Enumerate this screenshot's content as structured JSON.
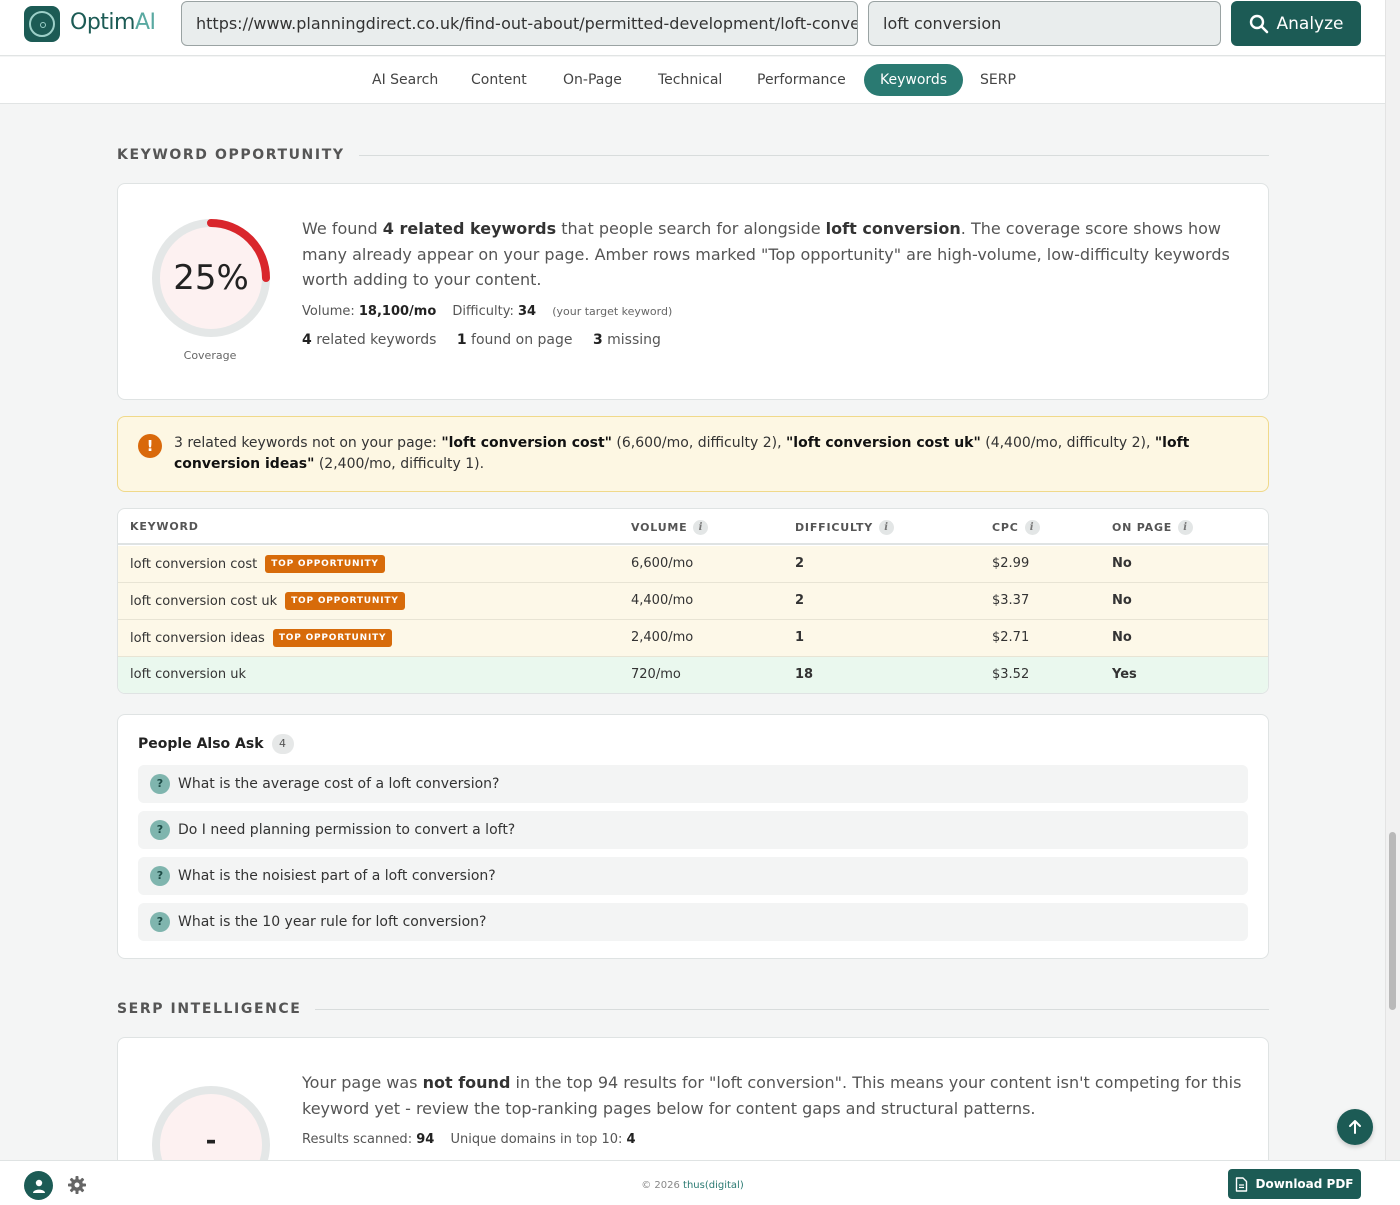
{
  "brand": {
    "name": "Optim",
    "name_suffix": "AI"
  },
  "search": {
    "url_value": "https://www.planningdirect.co.uk/find-out-about/permitted-development/loft-conversion",
    "keyword_value": "loft conversion",
    "analyze_label": "Analyze"
  },
  "tabs": [
    {
      "label": "AI Search"
    },
    {
      "label": "Content"
    },
    {
      "label": "On-Page"
    },
    {
      "label": "Technical"
    },
    {
      "label": "Performance"
    },
    {
      "label": "Keywords",
      "active": true
    },
    {
      "label": "SERP"
    }
  ],
  "keyword_opportunity": {
    "section_title": "KEYWORD OPPORTUNITY",
    "coverage_value": "25%",
    "coverage_fraction": 0.25,
    "coverage_label": "Coverage",
    "desc_1": "We found ",
    "desc_related": "4 related keywords",
    "desc_2": " that people search for alongside ",
    "desc_keyword": "loft conversion",
    "desc_3": ". The coverage score shows how many already appear on your page. Amber rows marked \"Top opportunity\" are high-volume, low-difficulty keywords worth adding to your content.",
    "volume_label": "Volume:",
    "volume_value": "18,100/mo",
    "difficulty_label": "Difficulty:",
    "difficulty_value": "34",
    "target_note": "(your target keyword)",
    "related_count": "4",
    "related_label": "related keywords",
    "found_count": "1",
    "found_label": "found on page",
    "missing_count": "3",
    "missing_label": "missing"
  },
  "alert": {
    "icon": "!",
    "intro": "3 related keywords not on your page: ",
    "k1": "\"loft conversion cost\"",
    "k1_info": " (6,600/mo, difficulty 2), ",
    "k2": "\"loft conversion cost uk\"",
    "k2_info": " (4,400/mo, difficulty 2), ",
    "k3": "\"loft conversion ideas\"",
    "k3_info": " (2,400/mo, difficulty 1)."
  },
  "table": {
    "headers": {
      "keyword": "KEYWORD",
      "volume": "VOLUME",
      "difficulty": "DIFFICULTY",
      "cpc": "CPC",
      "on_page": "ON PAGE",
      "info": "i"
    },
    "badge_label": "TOP OPPORTUNITY",
    "rows": [
      {
        "keyword": "loft conversion cost",
        "volume": "6,600/mo",
        "difficulty": "2",
        "cpc": "$2.99",
        "on_page": "No"
      },
      {
        "keyword": "loft conversion cost uk",
        "volume": "4,400/mo",
        "difficulty": "2",
        "cpc": "$3.37",
        "on_page": "No"
      },
      {
        "keyword": "loft conversion ideas",
        "volume": "2,400/mo",
        "difficulty": "1",
        "cpc": "$2.71",
        "on_page": "No"
      },
      {
        "keyword": "loft conversion uk",
        "volume": "720/mo",
        "difficulty": "18",
        "cpc": "$3.52",
        "on_page": "Yes"
      }
    ]
  },
  "paa": {
    "title": "People Also Ask",
    "count": "4",
    "icon": "?",
    "questions": [
      "What is the average cost of a loft conversion?",
      "Do I need planning permission to convert a loft?",
      "What is the noisiest part of a loft conversion?",
      "What is the 10 year rule for loft conversion?"
    ]
  },
  "serp": {
    "section_title": "SERP INTELLIGENCE",
    "gauge_value": "-",
    "desc_1": "Your page was ",
    "desc_bold": "not found",
    "desc_2": " in the top 94 results for \"loft conversion\". This means your content isn't competing for this keyword yet - review the top-ranking pages below for content gaps and structural patterns.",
    "scanned_label": "Results scanned:",
    "scanned_value": "94",
    "domains_label": "Unique domains in top 10:",
    "domains_value": "4"
  },
  "footer": {
    "copyright": "© 2026 ",
    "brand": "thus(digital)",
    "pdf_label": "Download PDF"
  },
  "colors": {
    "brand": "#1c5b55",
    "accent": "#2a7a72",
    "gauge_arc": "#d9262c",
    "amber": "#d76b0a",
    "green": "#1d8a3f",
    "red": "#cf2b2b"
  }
}
